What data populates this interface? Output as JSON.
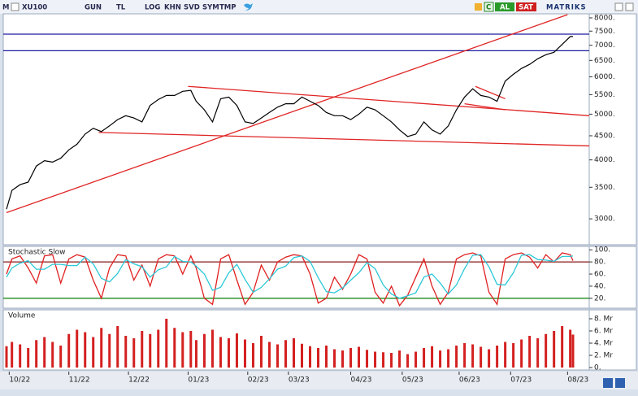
{
  "toolbar": {
    "menu": "M",
    "symbol": "XU100",
    "buttons": [
      "GUN",
      "TL",
      "LOG",
      "KHN",
      "SVD",
      "SYM",
      "TMP"
    ],
    "refresh": "C",
    "buy": "AL",
    "sell": "SAT",
    "brand": "MATRIKS"
  },
  "chart_data": [
    {
      "type": "line",
      "color": "#000000",
      "log_scale": true,
      "xlim": [
        0,
        215
      ],
      "ylim": [
        2654,
        8128
      ],
      "yticks": [
        {
          "value": 3000,
          "label": "3000."
        },
        {
          "value": 3500,
          "label": "3500."
        },
        {
          "value": 4000,
          "label": "4000."
        },
        {
          "value": 4500,
          "label": "4500."
        },
        {
          "value": 5000,
          "label": "5000."
        },
        {
          "value": 5500,
          "label": "5500."
        },
        {
          "value": 6000,
          "label": "6000."
        },
        {
          "value": 6500,
          "label": "6500."
        },
        {
          "value": 7000,
          "label": "7000."
        },
        {
          "value": 7500,
          "label": "7500."
        },
        {
          "value": 8000,
          "label": "8000."
        }
      ],
      "x": [
        0,
        2,
        5,
        8,
        11,
        14,
        17,
        20,
        23,
        26,
        29,
        32,
        35,
        38,
        41,
        44,
        47,
        50,
        53,
        56,
        59,
        62,
        65,
        68,
        70,
        73,
        76,
        79,
        82,
        85,
        88,
        91,
        94,
        97,
        100,
        103,
        106,
        109,
        112,
        115,
        118,
        121,
        124,
        127,
        130,
        133,
        136,
        139,
        142,
        145,
        148,
        151,
        154,
        157,
        160,
        163,
        166,
        169,
        172,
        175,
        178,
        181,
        184,
        187,
        190,
        193,
        196,
        199,
        202,
        205,
        208,
        209
      ],
      "values": [
        3145,
        3447,
        3544,
        3588,
        3882,
        3985,
        3956,
        4033,
        4200,
        4317,
        4537,
        4667,
        4593,
        4722,
        4870,
        4963,
        4907,
        4815,
        5217,
        5370,
        5478,
        5478,
        5591,
        5614,
        5326,
        5109,
        4815,
        5391,
        5435,
        5217,
        4815,
        4778,
        4907,
        5043,
        5174,
        5261,
        5261,
        5435,
        5326,
        5217,
        5043,
        4963,
        4963,
        4870,
        5000,
        5174,
        5109,
        4963,
        4815,
        4630,
        4483,
        4537,
        4815,
        4630,
        4537,
        4722,
        5109,
        5435,
        5659,
        5478,
        5435,
        5326,
        5875,
        6075,
        6250,
        6375,
        6553,
        6684,
        6763,
        7028,
        7306,
        7306
      ],
      "hlines": [
        {
          "value": 7389,
          "color": "#1c1ca0"
        },
        {
          "value": 6816,
          "color": "#1c1ca0"
        }
      ],
      "trend_lines": [
        {
          "x": [
            0,
            207
          ],
          "values": [
            3092,
            8128
          ],
          "color": "#e02424"
        },
        {
          "x": [
            67,
            215
          ],
          "values": [
            5727,
            4963
          ],
          "color": "#e02424"
        },
        {
          "x": [
            34,
            215
          ],
          "values": [
            4574,
            4283
          ],
          "color": "#e02424"
        },
        {
          "x": [
            173,
            184
          ],
          "values": [
            5727,
            5391
          ],
          "color": "#e02424"
        },
        {
          "x": [
            169,
            184
          ],
          "values": [
            5261,
            5109
          ],
          "color": "#e02424"
        }
      ]
    },
    {
      "type": "line",
      "title": "Stochastic Slow",
      "ylim": [
        5,
        103
      ],
      "yticks": [
        {
          "value": 20,
          "label": "20."
        },
        {
          "value": 40,
          "label": "40."
        },
        {
          "value": 60,
          "label": "60."
        },
        {
          "value": 80,
          "label": "80."
        },
        {
          "value": 100,
          "label": "100."
        }
      ],
      "hlines": [
        {
          "value": 80,
          "color": "#8b1a1a"
        },
        {
          "value": 20,
          "color": "#1a8a1a"
        }
      ],
      "series": [
        {
          "color": "#e02020",
          "values": [
            60,
            85,
            90,
            70,
            45,
            90,
            92,
            45,
            85,
            92,
            88,
            50,
            20,
            70,
            92,
            90,
            50,
            75,
            40,
            85,
            92,
            90,
            60,
            90,
            70,
            20,
            10,
            85,
            92,
            50,
            10,
            30,
            75,
            50,
            80,
            88,
            92,
            90,
            60,
            12,
            20,
            55,
            35,
            60,
            92,
            85,
            30,
            12,
            40,
            8,
            25,
            55,
            85,
            40,
            10,
            30,
            85,
            92,
            95,
            90,
            30,
            10,
            85,
            92,
            95,
            88,
            70,
            92,
            80,
            95,
            92,
            82
          ]
        },
        {
          "color": "#2cc8d8",
          "values": [
            55,
            70,
            78,
            82,
            68,
            68,
            76,
            76,
            74,
            74,
            88,
            77,
            53,
            47,
            61,
            84,
            77,
            72,
            55,
            67,
            72,
            89,
            81,
            80,
            73,
            60,
            33,
            38,
            62,
            76,
            51,
            30,
            38,
            52,
            68,
            73,
            87,
            90,
            81,
            54,
            31,
            29,
            37,
            50,
            62,
            79,
            69,
            42,
            27,
            20,
            24,
            29,
            55,
            60,
            45,
            27,
            42,
            69,
            91,
            92,
            72,
            43,
            42,
            62,
            91,
            92,
            84,
            83,
            81,
            89,
            89,
            90
          ]
        }
      ]
    },
    {
      "type": "bar",
      "title": "Volume",
      "color": "#d42020",
      "ylim": [
        0,
        9.2
      ],
      "yticks": [
        {
          "value": 0,
          "label": "0."
        },
        {
          "value": 2,
          "label": "2. Mr"
        },
        {
          "value": 4,
          "label": "4. Mr"
        },
        {
          "value": 6,
          "label": "6. Mr"
        },
        {
          "value": 8,
          "label": "8. Mr"
        }
      ],
      "values": [
        3.5,
        4.2,
        3.8,
        3.2,
        4.5,
        5.0,
        4.2,
        3.6,
        5.5,
        6.2,
        5.8,
        5.0,
        6.5,
        5.5,
        6.8,
        5.2,
        4.8,
        6.0,
        5.5,
        6.2,
        8.0,
        6.5,
        5.8,
        6.0,
        4.5,
        5.5,
        6.2,
        5.0,
        4.8,
        5.6,
        4.6,
        4.0,
        5.2,
        4.2,
        3.8,
        4.5,
        4.8,
        3.9,
        3.5,
        3.2,
        3.6,
        3.0,
        2.8,
        3.2,
        3.4,
        2.9,
        2.6,
        2.5,
        2.4,
        2.8,
        2.2,
        2.6,
        3.2,
        3.5,
        2.8,
        3.0,
        3.6,
        4.0,
        3.8,
        3.4,
        3.0,
        3.6,
        4.2,
        4.0,
        4.6,
        5.2,
        4.8,
        5.5,
        6.0,
        6.8,
        6.2,
        5.4
      ],
      "xticks": [
        {
          "value": 1,
          "label": "10/22"
        },
        {
          "value": 23,
          "label": "11/22"
        },
        {
          "value": 45,
          "label": "12/22"
        },
        {
          "value": 67,
          "label": "01/23"
        },
        {
          "value": 89,
          "label": "02/23"
        },
        {
          "value": 104,
          "label": "03/23"
        },
        {
          "value": 127,
          "label": "04/23"
        },
        {
          "value": 146,
          "label": "05/23"
        },
        {
          "value": 167,
          "label": "06/23"
        },
        {
          "value": 186,
          "label": "07/23"
        },
        {
          "value": 207,
          "label": "08/23"
        }
      ]
    }
  ]
}
